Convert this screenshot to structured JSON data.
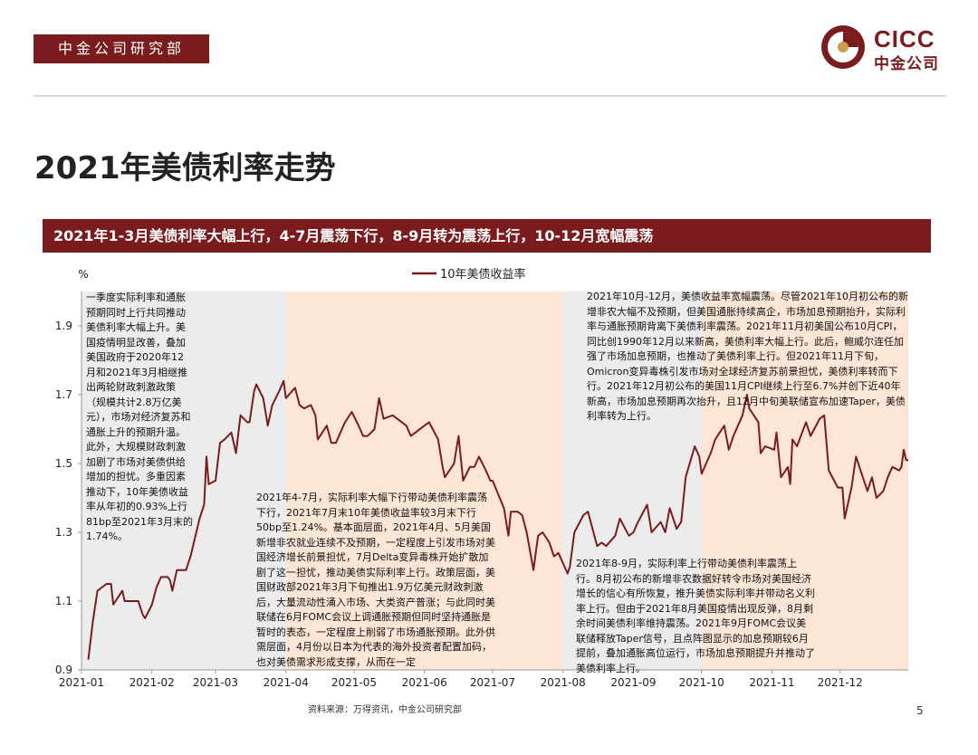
{
  "header": {
    "dept": "中金公司研究部",
    "logo_en": "CICC",
    "logo_cn": "中金公司"
  },
  "title": "2021年美债利率走势",
  "banner": "2021年1-3月美债利率大幅上行，4-7月震荡下行，8-9月转为震荡上行，10-12月宽幅震荡",
  "colors": {
    "brand": "#7a1c1e",
    "series": "#7a1c1e",
    "band_gray": "#ececec",
    "band_orange": "#fde6d6"
  },
  "chart_data": {
    "type": "line",
    "unit_label": "%",
    "legend": {
      "label": "10年美债收益率",
      "position": "top-center"
    },
    "ylim": [
      0.9,
      2.0
    ],
    "yticks": [
      0.9,
      1.1,
      1.3,
      1.5,
      1.7,
      1.9
    ],
    "ytick_labels": [
      "0.9",
      "1.1",
      "1.3",
      "1.5",
      "1.7",
      "1.9"
    ],
    "xtick_labels": [
      "2021-01",
      "2021-02",
      "2021-03",
      "2021-04",
      "2021-05",
      "2021-06",
      "2021-07",
      "2021-08",
      "2021-09",
      "2021-10",
      "2021-11",
      "2021-12"
    ],
    "periods": [
      {
        "name": "Q1",
        "from": "2021-01-01",
        "to": "2021-03-31",
        "fill": "gray"
      },
      {
        "name": "4-7月",
        "from": "2021-04-01",
        "to": "2021-07-31",
        "fill": "orange"
      },
      {
        "name": "8-9月",
        "from": "2021-08-01",
        "to": "2021-09-30",
        "fill": "gray"
      },
      {
        "name": "10-12月",
        "from": "2021-10-01",
        "to": "2021-12-31",
        "fill": "orange"
      }
    ],
    "series": [
      {
        "name": "10年美债收益率",
        "points": [
          [
            "2021-01-04",
            0.93
          ],
          [
            "2021-01-06",
            1.04
          ],
          [
            "2021-01-08",
            1.13
          ],
          [
            "2021-01-12",
            1.15
          ],
          [
            "2021-01-14",
            1.15
          ],
          [
            "2021-01-15",
            1.09
          ],
          [
            "2021-01-19",
            1.13
          ],
          [
            "2021-01-20",
            1.1
          ],
          [
            "2021-01-22",
            1.1
          ],
          [
            "2021-01-26",
            1.1
          ],
          [
            "2021-01-28",
            1.06
          ],
          [
            "2021-01-29",
            1.05
          ],
          [
            "2021-02-01",
            1.09
          ],
          [
            "2021-02-03",
            1.14
          ],
          [
            "2021-02-05",
            1.17
          ],
          [
            "2021-02-08",
            1.17
          ],
          [
            "2021-02-09",
            1.16
          ],
          [
            "2021-02-10",
            1.13
          ],
          [
            "2021-02-12",
            1.19
          ],
          [
            "2021-02-16",
            1.19
          ],
          [
            "2021-02-18",
            1.23
          ],
          [
            "2021-02-22",
            1.34
          ],
          [
            "2021-02-24",
            1.38
          ],
          [
            "2021-02-25",
            1.52
          ],
          [
            "2021-02-26",
            1.44
          ],
          [
            "2021-03-01",
            1.45
          ],
          [
            "2021-03-03",
            1.56
          ],
          [
            "2021-03-05",
            1.57
          ],
          [
            "2021-03-08",
            1.59
          ],
          [
            "2021-03-10",
            1.53
          ],
          [
            "2021-03-12",
            1.64
          ],
          [
            "2021-03-15",
            1.62
          ],
          [
            "2021-03-16",
            1.62
          ],
          [
            "2021-03-18",
            1.71
          ],
          [
            "2021-03-19",
            1.73
          ],
          [
            "2021-03-22",
            1.69
          ],
          [
            "2021-03-24",
            1.61
          ],
          [
            "2021-03-26",
            1.67
          ],
          [
            "2021-03-29",
            1.71
          ],
          [
            "2021-03-31",
            1.74
          ],
          [
            "2021-04-01",
            1.69
          ],
          [
            "2021-04-05",
            1.72
          ],
          [
            "2021-04-07",
            1.67
          ],
          [
            "2021-04-09",
            1.66
          ],
          [
            "2021-04-12",
            1.67
          ],
          [
            "2021-04-14",
            1.64
          ],
          [
            "2021-04-15",
            1.57
          ],
          [
            "2021-04-19",
            1.61
          ],
          [
            "2021-04-21",
            1.56
          ],
          [
            "2021-04-23",
            1.56
          ],
          [
            "2021-04-27",
            1.62
          ],
          [
            "2021-04-30",
            1.65
          ],
          [
            "2021-05-03",
            1.61
          ],
          [
            "2021-05-05",
            1.58
          ],
          [
            "2021-05-07",
            1.58
          ],
          [
            "2021-05-10",
            1.6
          ],
          [
            "2021-05-12",
            1.69
          ],
          [
            "2021-05-14",
            1.63
          ],
          [
            "2021-05-18",
            1.64
          ],
          [
            "2021-05-20",
            1.63
          ],
          [
            "2021-05-24",
            1.61
          ],
          [
            "2021-05-26",
            1.58
          ],
          [
            "2021-05-28",
            1.59
          ],
          [
            "2021-06-01",
            1.61
          ],
          [
            "2021-06-03",
            1.62
          ],
          [
            "2021-06-07",
            1.57
          ],
          [
            "2021-06-09",
            1.49
          ],
          [
            "2021-06-10",
            1.46
          ],
          [
            "2021-06-14",
            1.5
          ],
          [
            "2021-06-16",
            1.58
          ],
          [
            "2021-06-18",
            1.45
          ],
          [
            "2021-06-21",
            1.49
          ],
          [
            "2021-06-23",
            1.49
          ],
          [
            "2021-06-25",
            1.52
          ],
          [
            "2021-06-28",
            1.48
          ],
          [
            "2021-06-30",
            1.45
          ],
          [
            "2021-07-01",
            1.45
          ],
          [
            "2021-07-06",
            1.37
          ],
          [
            "2021-07-08",
            1.29
          ],
          [
            "2021-07-09",
            1.36
          ],
          [
            "2021-07-12",
            1.36
          ],
          [
            "2021-07-14",
            1.35
          ],
          [
            "2021-07-16",
            1.3
          ],
          [
            "2021-07-19",
            1.19
          ],
          [
            "2021-07-21",
            1.29
          ],
          [
            "2021-07-23",
            1.3
          ],
          [
            "2021-07-26",
            1.27
          ],
          [
            "2021-07-28",
            1.23
          ],
          [
            "2021-07-30",
            1.24
          ],
          [
            "2021-08-03",
            1.18
          ],
          [
            "2021-08-04",
            1.2
          ],
          [
            "2021-08-06",
            1.3
          ],
          [
            "2021-08-10",
            1.35
          ],
          [
            "2021-08-12",
            1.36
          ],
          [
            "2021-08-16",
            1.26
          ],
          [
            "2021-08-18",
            1.27
          ],
          [
            "2021-08-20",
            1.26
          ],
          [
            "2021-08-24",
            1.29
          ],
          [
            "2021-08-26",
            1.34
          ],
          [
            "2021-08-30",
            1.29
          ],
          [
            "2021-09-01",
            1.3
          ],
          [
            "2021-09-03",
            1.33
          ],
          [
            "2021-09-07",
            1.38
          ],
          [
            "2021-09-09",
            1.3
          ],
          [
            "2021-09-13",
            1.33
          ],
          [
            "2021-09-15",
            1.3
          ],
          [
            "2021-09-17",
            1.37
          ],
          [
            "2021-09-20",
            1.31
          ],
          [
            "2021-09-22",
            1.33
          ],
          [
            "2021-09-24",
            1.46
          ],
          [
            "2021-09-28",
            1.55
          ],
          [
            "2021-09-30",
            1.52
          ],
          [
            "2021-10-01",
            1.47
          ],
          [
            "2021-10-05",
            1.53
          ],
          [
            "2021-10-07",
            1.57
          ],
          [
            "2021-10-11",
            1.61
          ],
          [
            "2021-10-13",
            1.54
          ],
          [
            "2021-10-15",
            1.58
          ],
          [
            "2021-10-19",
            1.64
          ],
          [
            "2021-10-21",
            1.7
          ],
          [
            "2021-10-22",
            1.66
          ],
          [
            "2021-10-26",
            1.62
          ],
          [
            "2021-10-27",
            1.53
          ],
          [
            "2021-10-29",
            1.55
          ],
          [
            "2021-11-02",
            1.54
          ],
          [
            "2021-11-03",
            1.59
          ],
          [
            "2021-11-05",
            1.46
          ],
          [
            "2021-11-08",
            1.49
          ],
          [
            "2021-11-09",
            1.44
          ],
          [
            "2021-11-10",
            1.57
          ],
          [
            "2021-11-12",
            1.55
          ],
          [
            "2021-11-16",
            1.62
          ],
          [
            "2021-11-18",
            1.58
          ],
          [
            "2021-11-22",
            1.63
          ],
          [
            "2021-11-24",
            1.64
          ],
          [
            "2021-11-26",
            1.48
          ],
          [
            "2021-11-30",
            1.43
          ],
          [
            "2021-12-02",
            1.43
          ],
          [
            "2021-12-03",
            1.34
          ],
          [
            "2021-12-06",
            1.43
          ],
          [
            "2021-12-08",
            1.52
          ],
          [
            "2021-12-10",
            1.48
          ],
          [
            "2021-12-13",
            1.42
          ],
          [
            "2021-12-15",
            1.46
          ],
          [
            "2021-12-17",
            1.4
          ],
          [
            "2021-12-20",
            1.42
          ],
          [
            "2021-12-22",
            1.46
          ],
          [
            "2021-12-24",
            1.49
          ],
          [
            "2021-12-27",
            1.48
          ],
          [
            "2021-12-28",
            1.49
          ],
          [
            "2021-12-29",
            1.54
          ],
          [
            "2021-12-30",
            1.51
          ],
          [
            "2021-12-31",
            1.51
          ]
        ]
      }
    ],
    "annotations": [
      "一季度实际利率和通胀预期同时上行共同推动美债利率大幅上升。美国疫情明显改善，叠加美国政府于2020年12月和2021年3月相继推出两轮财政刺激政策（规模共计2.8万亿美元），市场对经济复苏和通胀上升的预期升温。此外，大规模财政刺激加剧了市场对美债供给增加的担忧。多重因素推动下，10年美债收益率从年初的0.93%上行81bp至2021年3月末的1.74%。",
      "2021年4-7月，实际利率大幅下行带动美债利率震荡下行，2021年7月末10年美债收益率较3月末下行50bp至1.24%。基本面层面，2021年4月、5月美国新增非农就业连续不及预期，一定程度上引发市场对美国经济增长前景担忧，7月Delta变异毒株开始扩散加剧了这一担忧，推动美债实际利率上行。政策层面，美国财政部2021年3月下旬推出1.9万亿美元财政刺激后，大量流动性涌入市场、大类资产普涨；与此同时美联储在6月FOMC会议上调通胀预期但同时坚持通胀是暂时的表态，一定程度上削弱了市场通胀预期。此外供需层面，4月份以日本为代表的海外投资者配置加码，也对美债需求形成支撑，从而在一定",
      "2021年8-9月，实际利率上行带动美债利率震荡上行。8月初公布的新增非农数据好转令市场对美国经济增长的信心有所恢复，推升美债实际利率并带动名义利率上行。但由于2021年8月美国疫情出现反弹，8月剩余时间美债利率维持震荡。2021年9月FOMC会议美联储释放Taper信号，且点阵图显示的加息预期较6月提前，叠加通胀高位运行，市场加息预期提升并推动了美债利率上行。",
      "2021年10月-12月，美债收益率宽幅震荡。尽管2021年10月初公布的新增非农大幅不及预期，但美国通胀持续高企，市场加息预期抬升，实际利率与通胀预期背离下美债利率震荡。2021年11月初美国公布10月CPI，同比创1990年12月以来新高，美债利率大幅上行。此后，鲍威尔连任加强了市场加息预期，也推动了美债利率上行。但2021年11月下旬，Omicron变异毒株引发市场对全球经济复苏前景担忧，美债利率转而下行。2021年12月初公布的美国11月CPI继续上行至6.7%并创下近40年新高，市场加息预期再次抬升，且12月中旬美联储宣布加速Taper，美债利率转为上行。"
    ]
  },
  "footer": {
    "source": "资料来源：万得资讯，中金公司研究部",
    "page": "5"
  }
}
